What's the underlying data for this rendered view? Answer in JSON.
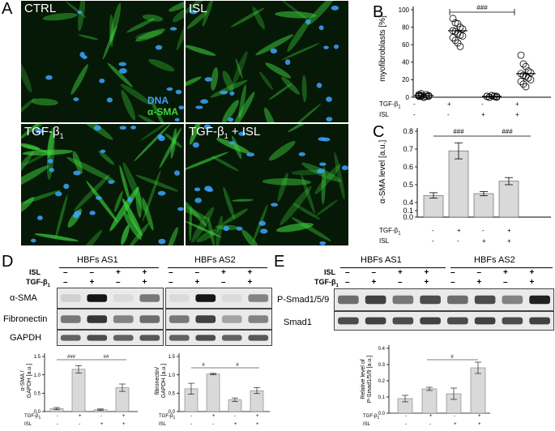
{
  "panel_letters": [
    "A",
    "B",
    "C",
    "D",
    "E"
  ],
  "panel_a": {
    "labels": [
      "CTRL",
      "ISL",
      "TGF-β",
      "TGF-β"
    ],
    "sub1": "1",
    "plus_isl": " + ISL",
    "stain_dna": "DNA",
    "stain_sma": "α-SMA"
  },
  "colors": {
    "dna": "#3da3ff",
    "sma": "#3fd83f",
    "bar": "#d9d9d9"
  },
  "panel_b": {
    "ylabel": "myofibroblasts [%]",
    "yticks": [
      "100",
      "80",
      "60",
      "40",
      "20",
      "0"
    ],
    "sig": "###",
    "row1": [
      "-",
      "+",
      "-",
      "+"
    ],
    "row2": [
      "-",
      "-",
      "+",
      "+"
    ]
  },
  "panel_c": {
    "ylabel": "α-SMA level [a.u.]",
    "yticks": [
      "0.8",
      "0.7",
      "0.6",
      "0.5",
      "0.4",
      "0.1",
      "0.0"
    ],
    "sig1": "###",
    "sig2": "###",
    "row1": [
      "-",
      "+",
      "-",
      "+"
    ],
    "row2": [
      "-",
      "-",
      "+",
      "+"
    ]
  },
  "panel_d": {
    "group1": "HBFs AS1",
    "group2": "HBFs AS2",
    "isl_label": "ISL",
    "tgf_label": "TGF-β",
    "isl_row": [
      "–",
      "–",
      "+",
      "+",
      "–",
      "–",
      "+",
      "+"
    ],
    "tgf_row": [
      "–",
      "+",
      "–",
      "+",
      "–",
      "+",
      "–",
      "+"
    ],
    "bands": [
      "α-SMA",
      "Fibronectin",
      "GAPDH"
    ],
    "chart1_ylabel1": "α-SMA /",
    "chart1_ylabel2": "GAPDH [a.u.]",
    "chart1_yticks": [
      "1.5",
      "1.0",
      "0.5",
      "0.0"
    ],
    "chart1_sig1": "###",
    "chart1_sig2": "##",
    "chart2_ylabel1": "fibronectin/",
    "chart2_ylabel2": "GAPDH [a.u.]",
    "chart2_yticks": [
      "1.5",
      "1.0",
      "0.5",
      "0.0"
    ],
    "chart2_sig1": "#",
    "chart2_sig2": "#",
    "row1": [
      "-",
      "+",
      "-",
      "+"
    ],
    "row2": [
      "-",
      "-",
      "+",
      "+"
    ]
  },
  "panel_e": {
    "group1": "HBFs AS1",
    "group2": "HBFs AS2",
    "isl_label": "ISL",
    "tgf_label": "TGF-β",
    "isl_row": [
      "–",
      "–",
      "+",
      "+",
      "–",
      "–",
      "+",
      "+"
    ],
    "tgf_row": [
      "–",
      "+",
      "–",
      "+",
      "–",
      "+",
      "–",
      "+"
    ],
    "bands": [
      "P-Smad1/5/9",
      "Smad1"
    ],
    "ylabel1": "Relative level of",
    "ylabel2": "P-Smad1/5/9 [a.u.]",
    "yticks": [
      "0.4",
      "0.3",
      "0.2",
      "0.1",
      "0.0"
    ],
    "sig": "#",
    "row1": [
      "-",
      "+",
      "-",
      "+"
    ],
    "row2": [
      "-",
      "-",
      "+",
      "+"
    ]
  },
  "row_labels": {
    "tgf": "TGF-β",
    "sub": "1",
    "isl": "ISL"
  },
  "chart_data": [
    {
      "panel": "B",
      "type": "scatter",
      "ylabel": "myofibroblasts [%]",
      "ylim": [
        0,
        100
      ],
      "means": [
        2,
        76,
        1,
        27
      ],
      "errors": [
        0.5,
        3,
        0.5,
        3
      ],
      "points": [
        [
          1,
          2,
          0,
          3,
          1,
          2,
          4,
          0,
          1,
          2,
          3,
          1
        ],
        [
          90,
          85,
          84,
          80,
          78,
          76,
          75,
          73,
          71,
          70,
          68,
          65,
          62,
          58
        ],
        [
          1,
          0,
          2,
          1,
          0,
          1,
          0,
          2,
          1,
          1
        ],
        [
          48,
          38,
          35,
          30,
          28,
          27,
          25,
          24,
          22,
          20,
          18,
          15,
          12
        ]
      ]
    },
    {
      "panel": "C",
      "type": "bar",
      "ylabel": "α-SMA level [a.u.]",
      "values": [
        0.44,
        0.69,
        0.45,
        0.52
      ],
      "errors": [
        0.015,
        0.045,
        0.012,
        0.02
      ]
    },
    {
      "panel": "D1",
      "type": "bar",
      "ylabel": "α-SMA / GAPDH [a.u.]",
      "ylim": [
        0,
        1.5
      ],
      "values": [
        0.08,
        1.15,
        0.05,
        0.65
      ],
      "errors": [
        0.03,
        0.1,
        0.02,
        0.1
      ]
    },
    {
      "panel": "D2",
      "type": "bar",
      "ylabel": "fibronectin/ GAPDH [a.u.]",
      "ylim": [
        0,
        1.5
      ],
      "values": [
        0.62,
        1.02,
        0.32,
        0.57
      ],
      "errors": [
        0.15,
        0.02,
        0.05,
        0.08
      ]
    },
    {
      "panel": "E",
      "type": "bar",
      "ylabel": "Relative level of P-Smad1/5/9 [a.u.]",
      "ylim": [
        0,
        0.4
      ],
      "values": [
        0.09,
        0.15,
        0.12,
        0.28
      ],
      "errors": [
        0.02,
        0.01,
        0.035,
        0.035
      ]
    }
  ]
}
